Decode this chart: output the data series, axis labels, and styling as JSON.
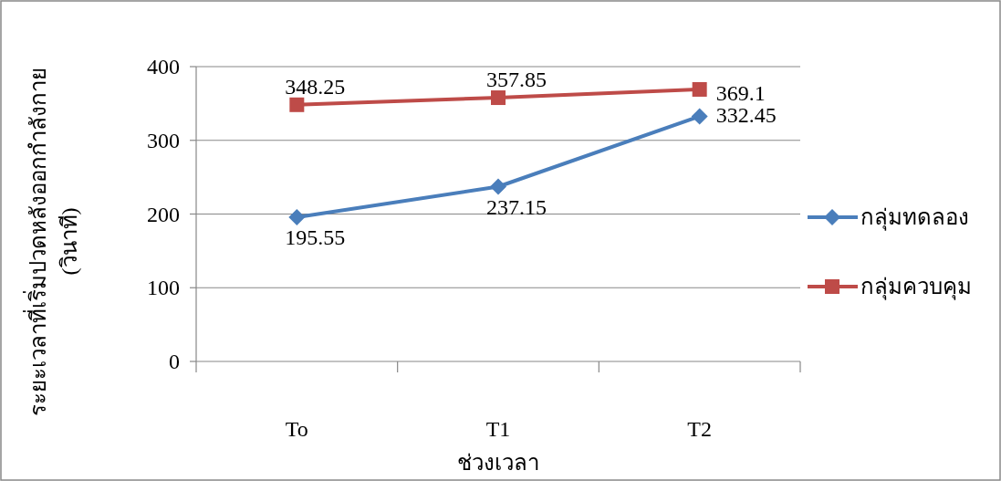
{
  "chart_data": {
    "type": "line",
    "categories": [
      "To",
      "T1",
      "T2"
    ],
    "xlabel": "ช่วงเวลา",
    "ylabel": "ระยะเวลาที่เริ่มปวดหลังออกกำลังกาย (วินาที)",
    "series": [
      {
        "name": "กลุ่มทดลอง",
        "color": "#4a7ebb",
        "marker": "diamond",
        "values": [
          195.55,
          237.15,
          332.45
        ]
      },
      {
        "name": "กลุ่มควบคุม",
        "color": "#be4b48",
        "marker": "square",
        "values": [
          348.25,
          357.85,
          369.1
        ]
      }
    ],
    "ylim": [
      0,
      400
    ],
    "yticks": [
      0,
      100,
      200,
      300,
      400
    ],
    "grid": "y",
    "legend": "right",
    "data_labels": true
  }
}
